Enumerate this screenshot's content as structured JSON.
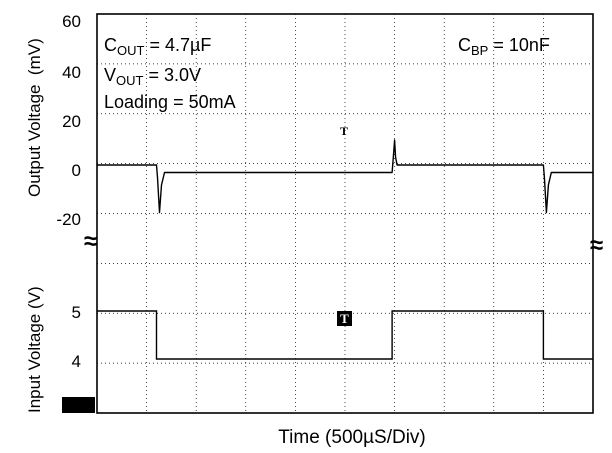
{
  "chart_data": {
    "type": "line",
    "xlabel": "Time (500µS/Div)",
    "x_divisions": 10,
    "upper": {
      "ylabel": "Output Voltage  (mV)",
      "yticks": [
        60,
        40,
        20,
        0,
        -20
      ],
      "ylim": [
        -20,
        60
      ],
      "annotations": {
        "cout": "C",
        "cout_sub": "OUT",
        "cout_val": " = 4.7µF",
        "vout": "V",
        "vout_sub": "OUT",
        "vout_val": " = 3.0V",
        "loading": "Loading = 50mA",
        "cbp": "C",
        "cbp_sub": "BP",
        "cbp_val": " = 10nF"
      },
      "series": [
        {
          "x": [
            0,
            1.2,
            1.22,
            1.26,
            1.3,
            1.36,
            1.45,
            5.95,
            5.97,
            6.0,
            6.02,
            6.05,
            6.1,
            9.0,
            9.02,
            9.06,
            9.1,
            9.16,
            9.25,
            10
          ],
          "y": [
            2,
            2,
            -3,
            -17,
            -6,
            -1,
            -1,
            -1,
            4,
            12,
            5,
            2,
            2,
            2,
            -3,
            -17,
            -6,
            -1,
            -1,
            -1
          ]
        }
      ]
    },
    "lower": {
      "ylabel": "Input Voltage (V)",
      "yticks": [
        5,
        4
      ],
      "series": [
        {
          "x": [
            0,
            1.2,
            1.2,
            5.95,
            5.95,
            9.0,
            9.0,
            10
          ],
          "y": [
            5,
            5,
            4,
            4,
            5,
            5,
            4,
            4
          ]
        }
      ]
    },
    "markers": [
      "T",
      "T"
    ],
    "break_symbol": "≈"
  }
}
